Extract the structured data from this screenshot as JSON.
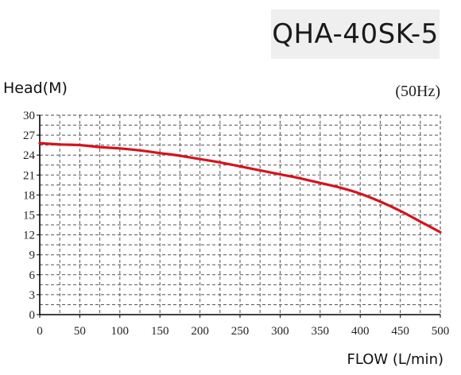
{
  "header": {
    "model": "QHA-40SK-5"
  },
  "chart_data": {
    "type": "line",
    "title": "QHA-40SK-5",
    "ylabel": "Head(M)",
    "xlabel": "FLOW (L/min)",
    "annotation": "(50Hz)",
    "xlim": [
      0,
      500
    ],
    "ylim": [
      0,
      30
    ],
    "x_ticks": [
      0,
      50,
      100,
      150,
      200,
      250,
      300,
      350,
      400,
      450,
      500
    ],
    "y_ticks": [
      0,
      3,
      6,
      9,
      12,
      15,
      18,
      21,
      24,
      27,
      30
    ],
    "grid": true,
    "series": [
      {
        "color": "#d4141c",
        "x": [
          0,
          25,
          50,
          75,
          100,
          125,
          150,
          175,
          200,
          225,
          250,
          275,
          300,
          325,
          350,
          375,
          400,
          425,
          450,
          475,
          500
        ],
        "y": [
          25.8,
          25.6,
          25.5,
          25.2,
          25.0,
          24.7,
          24.3,
          23.9,
          23.4,
          22.9,
          22.3,
          21.7,
          21.1,
          20.5,
          19.8,
          19.1,
          18.2,
          17.0,
          15.6,
          14.0,
          12.4
        ]
      }
    ]
  }
}
